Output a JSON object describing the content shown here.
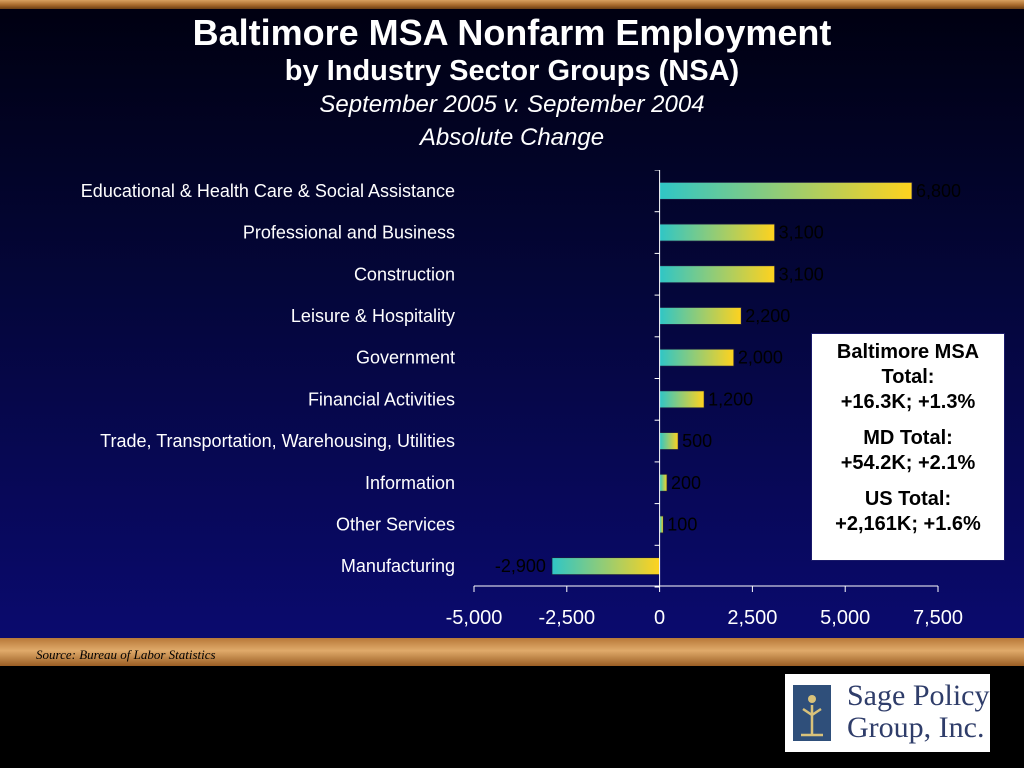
{
  "title": "Baltimore MSA Nonfarm Employment",
  "subtitle": "by Industry Sector Groups (NSA)",
  "period": "September 2005 v. September 2004",
  "measure": "Absolute Change",
  "chart_data": {
    "type": "bar",
    "orientation": "horizontal",
    "categories": [
      "Educational & Health Care & Social Assistance",
      "Professional and Business",
      "Construction",
      "Leisure & Hospitality",
      "Government",
      "Financial Activities",
      "Trade, Transportation, Warehousing, Utilities",
      "Information",
      "Other Services",
      "Manufacturing"
    ],
    "values": [
      6800,
      3100,
      3100,
      2200,
      2000,
      1200,
      500,
      200,
      100,
      -2900
    ],
    "value_labels": [
      "6,800",
      "3,100",
      "3,100",
      "2,200",
      "2,000",
      "1,200",
      "500",
      "200",
      "100",
      "-2,900"
    ],
    "xlim": [
      -5000,
      7500
    ],
    "xticks": [
      -5000,
      -2500,
      0,
      2500,
      5000,
      7500
    ],
    "xtick_labels": [
      "-5,000",
      "-2,500",
      "0",
      "2,500",
      "5,000",
      "7,500"
    ],
    "grid": false,
    "legend": "none",
    "colors": {
      "bar_start": "#2fc6c6",
      "bar_end": "#ffd21e",
      "axis": "#ffffff"
    }
  },
  "totals_box": {
    "msa_label": "Baltimore MSA",
    "msa_label2": "Total:",
    "msa_value": "+16.3K; +1.3%",
    "md_label": "MD Total:",
    "md_value": "+54.2K; +2.1%",
    "us_label": "US Total:",
    "us_value": "+2,161K; +1.6%"
  },
  "source": "Source:  Bureau of Labor Statistics",
  "logo": {
    "line1": "Sage Policy",
    "line2": "Group, Inc."
  }
}
